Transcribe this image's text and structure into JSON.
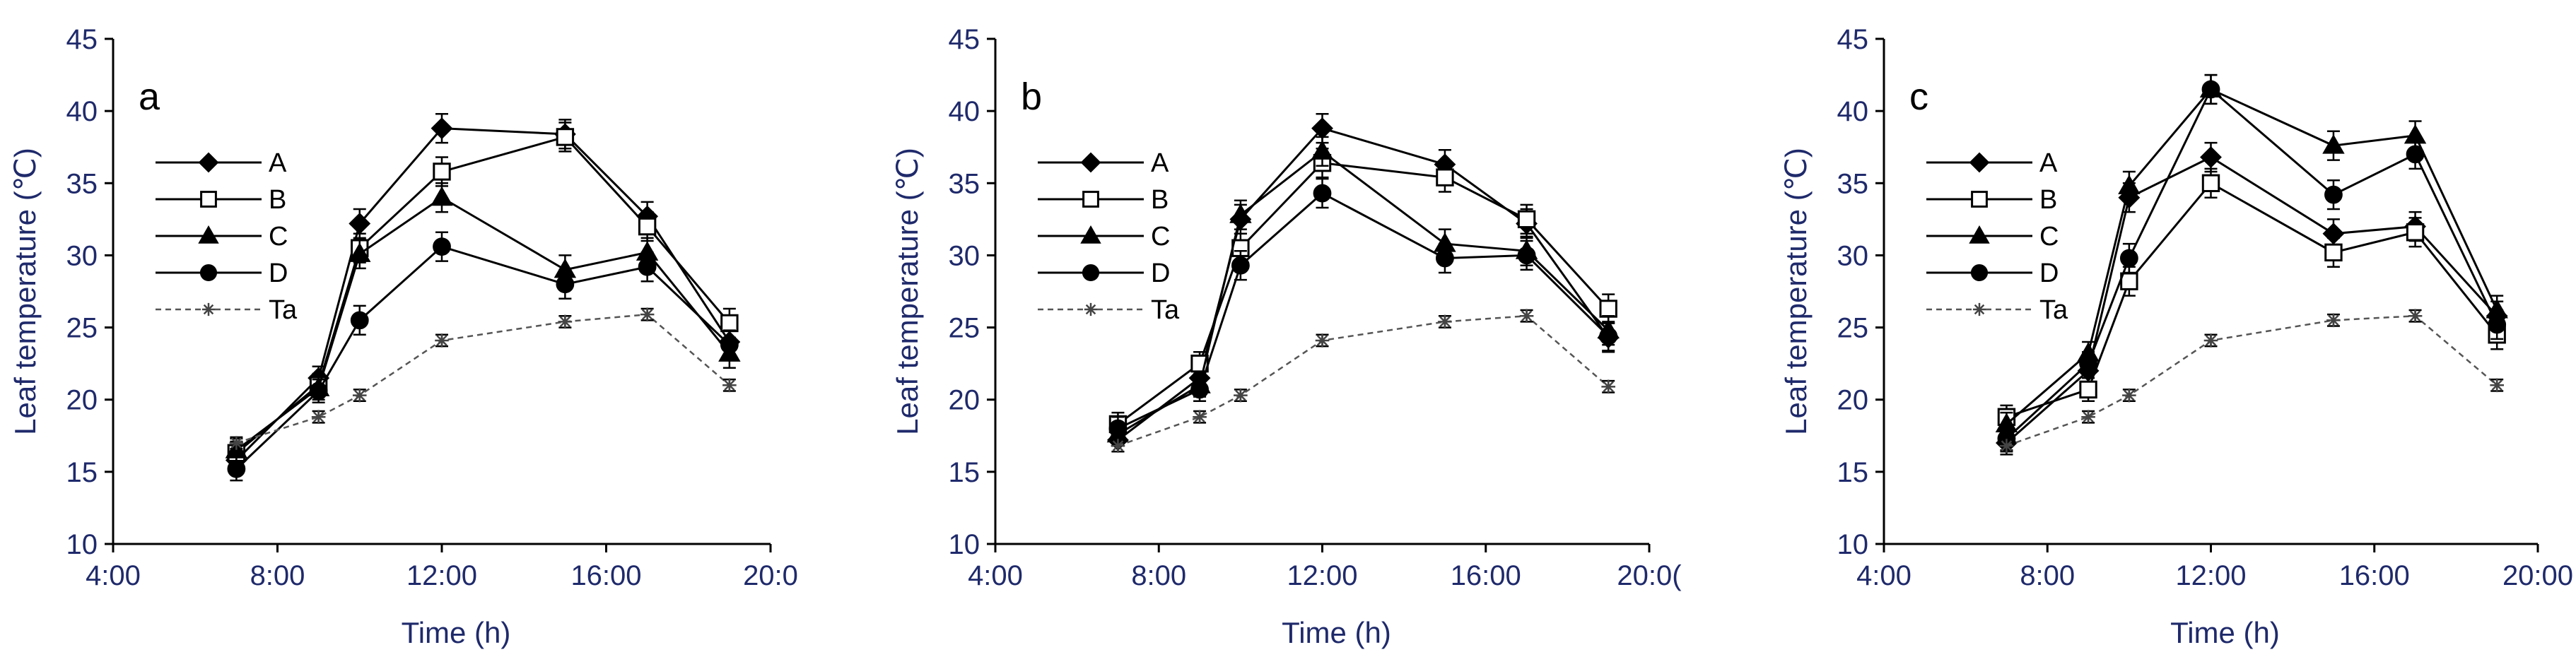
{
  "chart_data": [
    {
      "type": "line",
      "panel": "a",
      "xlabel": "Time (h)",
      "ylabel": "Leaf temperature (℃)",
      "xlim": [
        4,
        20
      ],
      "ylim": [
        10,
        45
      ],
      "xticks": [
        4,
        8,
        12,
        16,
        20
      ],
      "xtick_labels": [
        "4:00",
        "8:00",
        "12:00",
        "16:00",
        "20:0"
      ],
      "yticks": [
        10,
        15,
        20,
        25,
        30,
        35,
        40,
        45
      ],
      "ytick_labels": [
        "10",
        "15",
        "20",
        "25",
        "30",
        "35",
        "40",
        "45"
      ],
      "x": [
        7,
        9,
        10,
        12,
        15,
        17,
        19
      ],
      "legend_position": "upper-left",
      "series": [
        {
          "name": "A",
          "marker": "diamond",
          "values": [
            15.8,
            21.5,
            32.2,
            38.8,
            38.4,
            32.7,
            24.0
          ],
          "errors": [
            0.8,
            0.8,
            1.0,
            1.0,
            1.0,
            1.0,
            1.0
          ]
        },
        {
          "name": "B",
          "marker": "square-open",
          "values": [
            16.3,
            21.0,
            30.5,
            35.8,
            38.2,
            32.0,
            25.3
          ],
          "errors": [
            0.8,
            0.8,
            1.0,
            1.0,
            1.0,
            1.0,
            1.0
          ]
        },
        {
          "name": "C",
          "marker": "triangle",
          "values": [
            16.5,
            20.8,
            30.1,
            34.0,
            29.0,
            30.2,
            23.2
          ],
          "errors": [
            0.8,
            0.8,
            1.0,
            1.0,
            1.0,
            1.0,
            1.0
          ]
        },
        {
          "name": "D",
          "marker": "circle",
          "values": [
            15.2,
            20.6,
            25.5,
            30.6,
            28.0,
            29.2,
            23.8
          ],
          "errors": [
            0.8,
            0.8,
            1.0,
            1.0,
            1.0,
            1.0,
            1.0
          ]
        },
        {
          "name": "Ta",
          "marker": "asterisk",
          "dashed": true,
          "values": [
            17.0,
            18.8,
            20.3,
            24.1,
            25.4,
            25.9,
            21.0
          ],
          "errors": [
            0.4,
            0.4,
            0.4,
            0.4,
            0.4,
            0.4,
            0.4
          ]
        }
      ]
    },
    {
      "type": "line",
      "panel": "b",
      "xlabel": "Time (h)",
      "ylabel": "Leaf temperature (℃)",
      "xlim": [
        4,
        20
      ],
      "ylim": [
        10,
        45
      ],
      "xticks": [
        4,
        8,
        12,
        16,
        20
      ],
      "xtick_labels": [
        "4:00",
        "8:00",
        "12:00",
        "16:00",
        "20:0("
      ],
      "yticks": [
        10,
        15,
        20,
        25,
        30,
        35,
        40,
        45
      ],
      "ytick_labels": [
        "10",
        "15",
        "20",
        "25",
        "30",
        "35",
        "40",
        "45"
      ],
      "x": [
        7,
        9,
        10,
        12,
        15,
        17,
        19
      ],
      "legend_position": "upper-left",
      "series": [
        {
          "name": "A",
          "marker": "diamond",
          "values": [
            17.2,
            21.5,
            32.5,
            38.8,
            36.3,
            32.2,
            24.3
          ],
          "errors": [
            0.8,
            0.8,
            1.0,
            1.0,
            1.0,
            1.0,
            1.0
          ]
        },
        {
          "name": "B",
          "marker": "square-open",
          "values": [
            18.3,
            22.5,
            30.5,
            36.4,
            35.4,
            32.5,
            26.3
          ],
          "errors": [
            0.8,
            0.8,
            1.0,
            1.0,
            1.0,
            1.0,
            1.0
          ]
        },
        {
          "name": "C",
          "marker": "triangle",
          "values": [
            17.6,
            21.0,
            32.8,
            37.2,
            30.8,
            30.3,
            24.8
          ],
          "errors": [
            0.8,
            0.8,
            1.0,
            1.0,
            1.0,
            1.0,
            1.0
          ]
        },
        {
          "name": "D",
          "marker": "circle",
          "values": [
            18.0,
            20.7,
            29.3,
            34.3,
            29.8,
            30.0,
            24.4
          ],
          "errors": [
            0.8,
            0.8,
            1.0,
            1.0,
            1.0,
            1.0,
            1.0
          ]
        },
        {
          "name": "Ta",
          "marker": "asterisk",
          "dashed": true,
          "values": [
            16.8,
            18.8,
            20.3,
            24.1,
            25.4,
            25.8,
            20.9
          ],
          "errors": [
            0.4,
            0.4,
            0.4,
            0.4,
            0.4,
            0.4,
            0.4
          ]
        }
      ]
    },
    {
      "type": "line",
      "panel": "c",
      "xlabel": "Time (h)",
      "ylabel": "Leaf temperature (℃)",
      "xlim": [
        4,
        20
      ],
      "ylim": [
        10,
        45
      ],
      "xticks": [
        4,
        8,
        12,
        16,
        20
      ],
      "xtick_labels": [
        "4:00",
        "8:00",
        "12:00",
        "16:00",
        "20:00"
      ],
      "yticks": [
        10,
        15,
        20,
        25,
        30,
        35,
        40,
        45
      ],
      "ytick_labels": [
        "10",
        "15",
        "20",
        "25",
        "30",
        "35",
        "40",
        "45"
      ],
      "x": [
        7,
        9,
        10,
        12,
        15,
        17,
        19
      ],
      "legend_position": "upper-left",
      "series": [
        {
          "name": "A",
          "marker": "diamond",
          "values": [
            17.0,
            22.0,
            34.0,
            36.8,
            31.5,
            32.0,
            25.8
          ],
          "errors": [
            0.8,
            0.8,
            1.0,
            1.0,
            1.0,
            1.0,
            1.0
          ]
        },
        {
          "name": "B",
          "marker": "square-open",
          "values": [
            18.8,
            20.7,
            28.2,
            35.0,
            30.2,
            31.6,
            24.5
          ],
          "errors": [
            0.8,
            0.8,
            1.0,
            1.0,
            1.0,
            1.0,
            1.0
          ]
        },
        {
          "name": "C",
          "marker": "triangle",
          "values": [
            18.3,
            23.2,
            34.8,
            41.5,
            37.6,
            38.3,
            26.2
          ],
          "errors": [
            0.8,
            0.8,
            1.0,
            1.0,
            1.0,
            1.0,
            1.0
          ]
        },
        {
          "name": "D",
          "marker": "circle",
          "values": [
            17.3,
            22.5,
            29.8,
            41.5,
            34.2,
            37.0,
            25.2
          ],
          "errors": [
            0.8,
            0.8,
            1.0,
            1.0,
            1.0,
            1.0,
            1.0
          ]
        },
        {
          "name": "Ta",
          "marker": "asterisk",
          "dashed": true,
          "values": [
            16.8,
            18.8,
            20.3,
            24.1,
            25.5,
            25.8,
            21.0
          ],
          "errors": [
            0.4,
            0.4,
            0.4,
            0.4,
            0.4,
            0.4,
            0.4
          ]
        }
      ]
    }
  ]
}
